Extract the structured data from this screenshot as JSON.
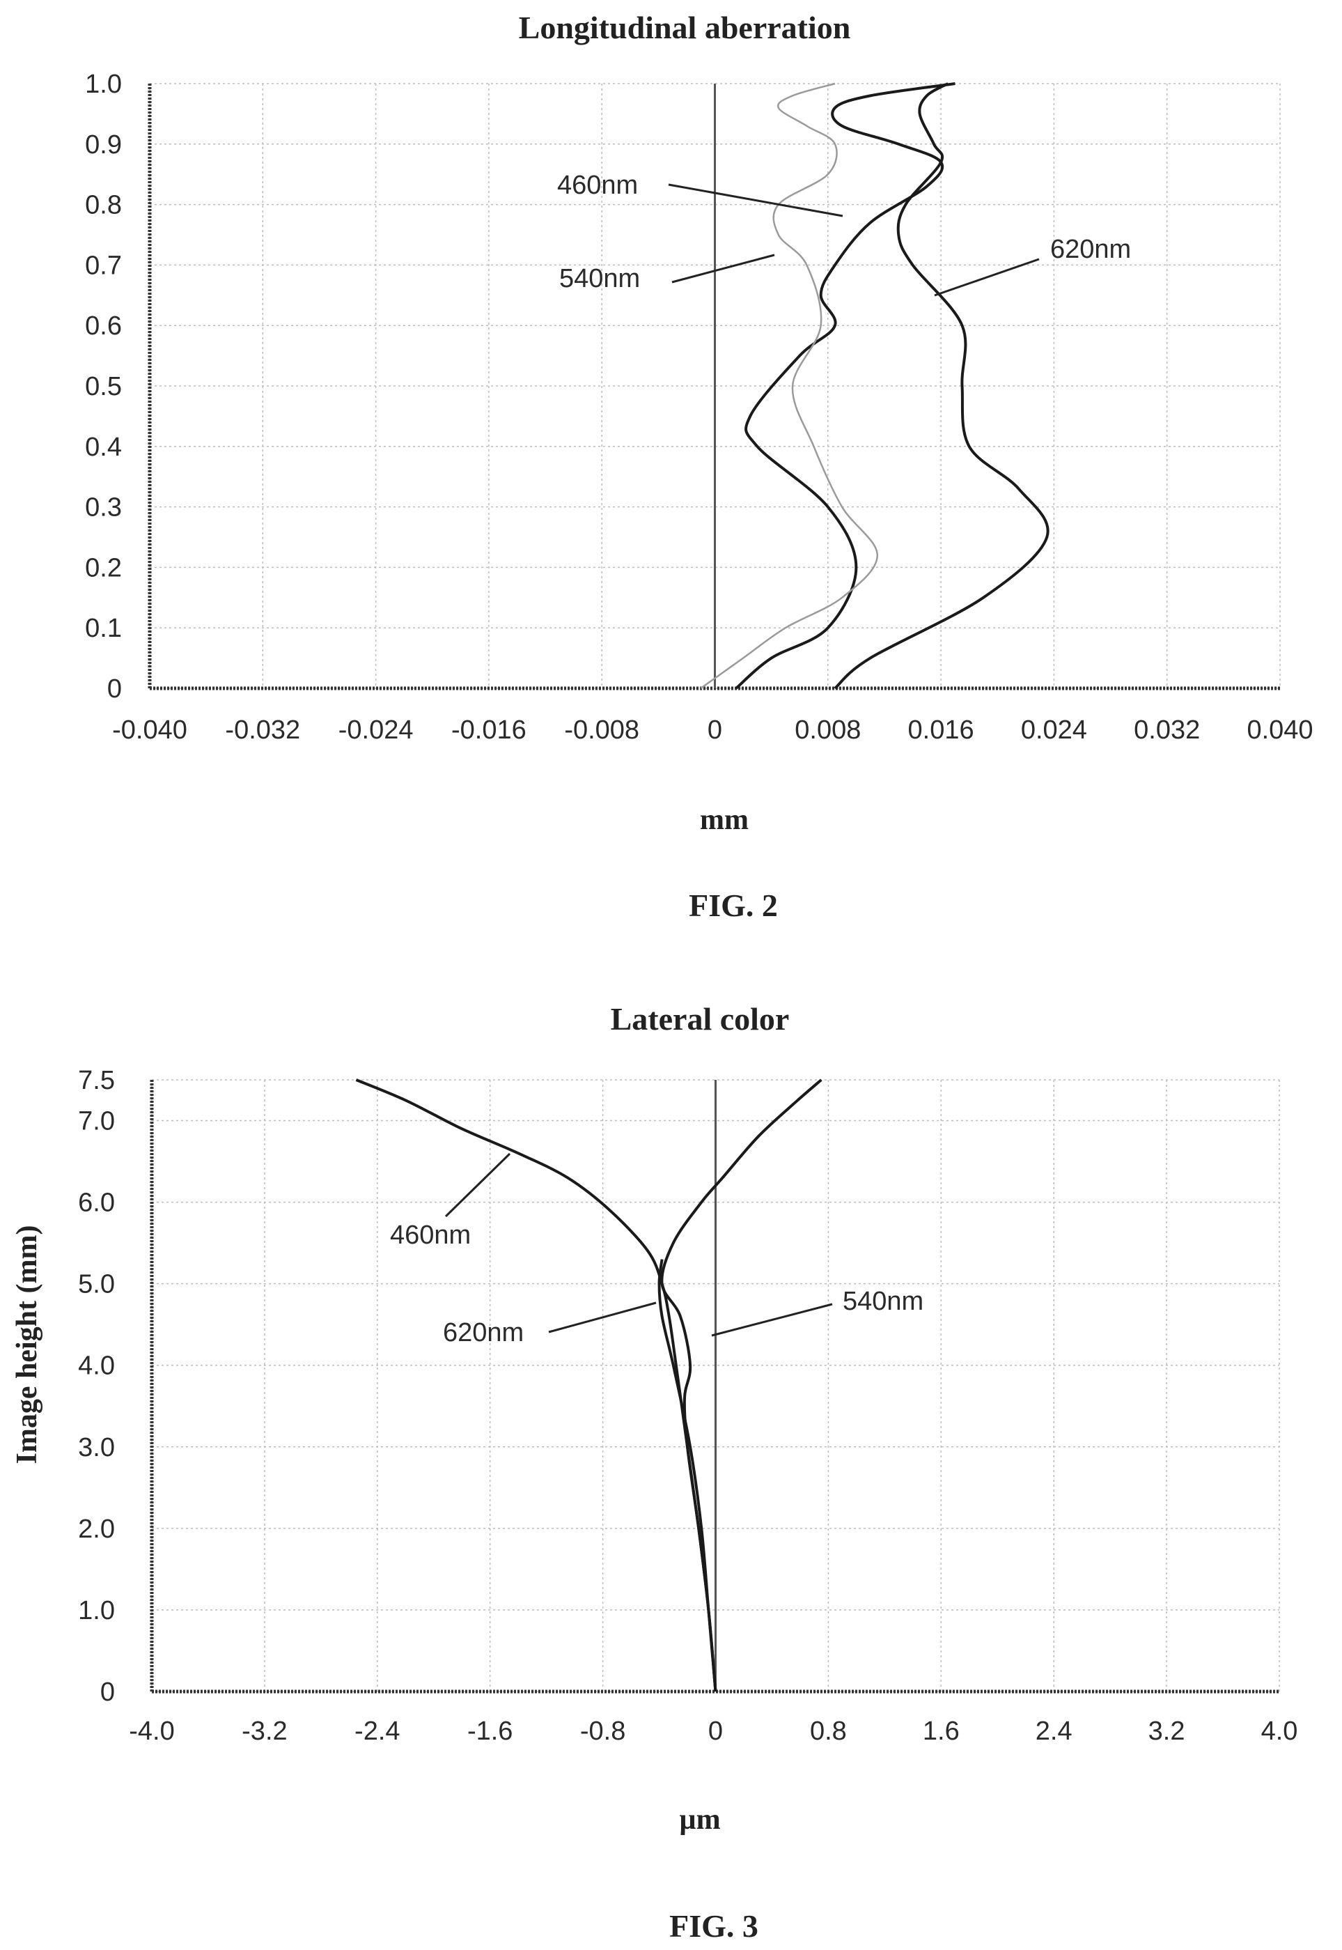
{
  "figures": [
    {
      "title": "Longitudinal aberration",
      "xlabel": "mm",
      "ylabel": "",
      "caption": "FIG. 2",
      "xticks": [
        "-0.040",
        "-0.032",
        "-0.024",
        "-0.016",
        "-0.008",
        "0",
        "0.008",
        "0.016",
        "0.024",
        "0.032",
        "0.040"
      ],
      "yticks": [
        "0",
        "0.1",
        "0.2",
        "0.3",
        "0.4",
        "0.5",
        "0.6",
        "0.7",
        "0.8",
        "0.9",
        "1.0"
      ],
      "callouts": [
        "460nm",
        "540nm",
        "620nm"
      ]
    },
    {
      "title": "Lateral color",
      "xlabel": "µm",
      "ylabel": "Image height (mm)",
      "caption": "FIG. 3",
      "xticks": [
        "-4.0",
        "-3.2",
        "-2.4",
        "-1.6",
        "-0.8",
        "0",
        "0.8",
        "1.6",
        "2.4",
        "3.2",
        "4.0"
      ],
      "yticks": [
        "0",
        "1.0",
        "2.0",
        "3.0",
        "4.0",
        "5.0",
        "6.0",
        "7.0",
        "7.5"
      ],
      "callouts": [
        "460nm",
        "620nm",
        "540nm"
      ]
    }
  ],
  "colors": {
    "line": "#1a1a1a",
    "line_light": "#9a9a9a",
    "grid": "#bdbdbd"
  },
  "chart_data": [
    {
      "type": "line",
      "title": "Longitudinal aberration",
      "xlabel": "mm",
      "ylabel": "",
      "xlim": [
        -0.04,
        0.04
      ],
      "ylim": [
        0,
        1.0
      ],
      "grid": true,
      "series": [
        {
          "name": "460nm",
          "x": [
            0.0015,
            0.004,
            0.008,
            0.01,
            0.008,
            0.003,
            0.0025,
            0.006,
            0.0085,
            0.0075,
            0.0085,
            0.011,
            0.015,
            0.016,
            0.013,
            0.009,
            0.0085,
            0.011,
            0.017
          ],
          "y": [
            0,
            0.05,
            0.1,
            0.2,
            0.3,
            0.4,
            0.45,
            0.55,
            0.6,
            0.65,
            0.7,
            0.77,
            0.83,
            0.87,
            0.9,
            0.93,
            0.96,
            0.98,
            1.0
          ]
        },
        {
          "name": "540nm",
          "x": [
            -0.001,
            0.002,
            0.005,
            0.009,
            0.0115,
            0.009,
            0.007,
            0.0055,
            0.0075,
            0.0065,
            0.0045,
            0.0045,
            0.008,
            0.0085,
            0.0065,
            0.0045,
            0.0055,
            0.0085
          ],
          "y": [
            0,
            0.05,
            0.1,
            0.15,
            0.22,
            0.3,
            0.4,
            0.5,
            0.6,
            0.7,
            0.75,
            0.8,
            0.85,
            0.9,
            0.93,
            0.96,
            0.98,
            1.0
          ]
        },
        {
          "name": "620nm",
          "x": [
            0.0085,
            0.011,
            0.019,
            0.0235,
            0.0215,
            0.018,
            0.0175,
            0.0175,
            0.014,
            0.013,
            0.0135,
            0.016,
            0.0155,
            0.0145,
            0.015,
            0.0165
          ],
          "y": [
            0,
            0.05,
            0.15,
            0.25,
            0.33,
            0.4,
            0.5,
            0.6,
            0.7,
            0.75,
            0.8,
            0.87,
            0.9,
            0.95,
            0.98,
            1.0
          ]
        }
      ]
    },
    {
      "type": "line",
      "title": "Lateral color",
      "xlabel": "µm",
      "ylabel": "Image height (mm)",
      "xlim": [
        -4.0,
        4.0
      ],
      "ylim": [
        0,
        7.5
      ],
      "grid": true,
      "series": [
        {
          "name": "460nm",
          "x": [
            0,
            -0.05,
            -0.12,
            -0.2,
            -0.28,
            -0.33,
            -0.38,
            -0.48,
            -0.75,
            -1.05,
            -1.4,
            -1.8,
            -2.2,
            -2.55
          ],
          "y": [
            0,
            1.0,
            2.0,
            3.0,
            4.0,
            4.6,
            5.0,
            5.4,
            5.9,
            6.3,
            6.6,
            6.9,
            7.25,
            7.5
          ]
        },
        {
          "name": "620nm",
          "x": [
            0,
            -0.05,
            -0.1,
            -0.18,
            -0.3,
            -0.38,
            -0.4,
            -0.38
          ],
          "y": [
            0,
            1.0,
            2.0,
            3.0,
            4.0,
            4.6,
            5.0,
            5.3
          ]
        },
        {
          "name": "540nm",
          "x": [
            0,
            -0.05,
            -0.12,
            -0.2,
            -0.22,
            -0.18,
            -0.25,
            -0.38,
            -0.3,
            -0.1,
            0.05,
            0.3,
            0.55,
            0.75
          ],
          "y": [
            0,
            1.0,
            2.0,
            3.0,
            3.6,
            4.0,
            4.6,
            5.0,
            5.5,
            6.0,
            6.3,
            6.8,
            7.2,
            7.5
          ]
        }
      ]
    }
  ]
}
